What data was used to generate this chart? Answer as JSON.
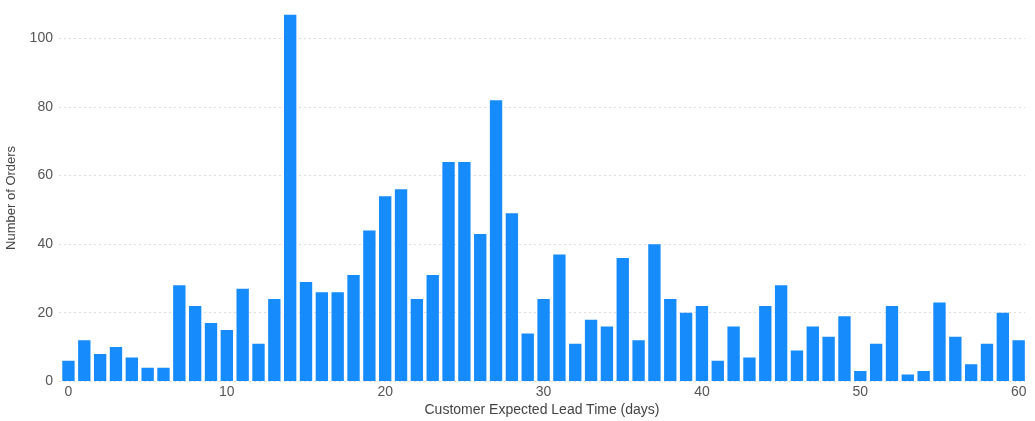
{
  "chart_data": {
    "type": "bar",
    "xlabel": "Customer Expected Lead Time (days)",
    "ylabel": "Number of Orders",
    "x": [
      0,
      1,
      2,
      3,
      4,
      5,
      6,
      7,
      8,
      9,
      10,
      11,
      12,
      13,
      14,
      15,
      16,
      17,
      18,
      19,
      20,
      21,
      22,
      23,
      24,
      25,
      26,
      27,
      28,
      29,
      30,
      31,
      32,
      33,
      34,
      35,
      36,
      37,
      38,
      39,
      40,
      41,
      42,
      43,
      44,
      45,
      46,
      47,
      48,
      49,
      50,
      51,
      52,
      53,
      54,
      55,
      56,
      57,
      58,
      59,
      60
    ],
    "values": [
      6,
      12,
      8,
      10,
      7,
      4,
      4,
      28,
      22,
      17,
      15,
      27,
      11,
      24,
      107,
      29,
      26,
      26,
      31,
      44,
      54,
      56,
      24,
      31,
      64,
      64,
      43,
      82,
      49,
      14,
      24,
      37,
      11,
      18,
      16,
      36,
      12,
      40,
      24,
      20,
      22,
      6,
      16,
      7,
      22,
      28,
      9,
      16,
      13,
      19,
      3,
      11,
      22,
      2,
      3,
      23,
      13,
      5,
      11,
      20,
      12
    ],
    "color": "#168bfb",
    "xlim": [
      -0.6,
      60.4
    ],
    "xticks": [
      0,
      10,
      20,
      30,
      40,
      50,
      60
    ],
    "ylim": [
      0,
      107
    ],
    "yticks": [
      0,
      20,
      40,
      60,
      80,
      100
    ],
    "grid": "y",
    "legend": false
  }
}
